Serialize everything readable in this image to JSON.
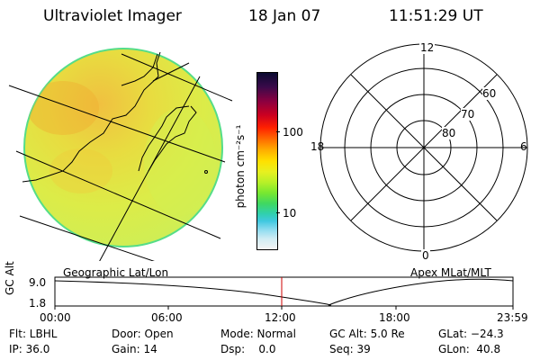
{
  "header": {
    "instrument": "Ultraviolet Imager",
    "date": "18 Jan 07",
    "time": "11:51:29 UT"
  },
  "colorbar": {
    "label": "photon cm⁻²s⁻¹",
    "ticks": [
      "100",
      "10"
    ],
    "scale": "log"
  },
  "polar_plot": {
    "mlt_labels": [
      "12",
      "18",
      "6",
      "0"
    ],
    "mlat_labels": [
      "60",
      "70",
      "80"
    ]
  },
  "coordinate_labels": {
    "left": "Geographic Lat/Lon",
    "right": "Apex MLat/MLT"
  },
  "altitude_plot": {
    "axis_label": "GC Alt",
    "y_ticks": [
      "9.0",
      "1.8"
    ],
    "x_ticks": [
      "00:00",
      "06:00",
      "12:00",
      "18:00",
      "23:59"
    ],
    "marker_time": "11:51:29",
    "marker_color": "#cc0000"
  },
  "status": {
    "filter": "Flt: LBHL",
    "ip": "IP: 36.0",
    "door": "Door: Open",
    "gain": "Gain: 14",
    "mode": "Mode: Normal",
    "dsp": "Dsp:    0.0",
    "gc_alt": "GC Alt: 5.0 Re",
    "seq": "Seq: 39",
    "glat": "GLat: −24.3",
    "glon": "GLon:  40.8"
  }
}
